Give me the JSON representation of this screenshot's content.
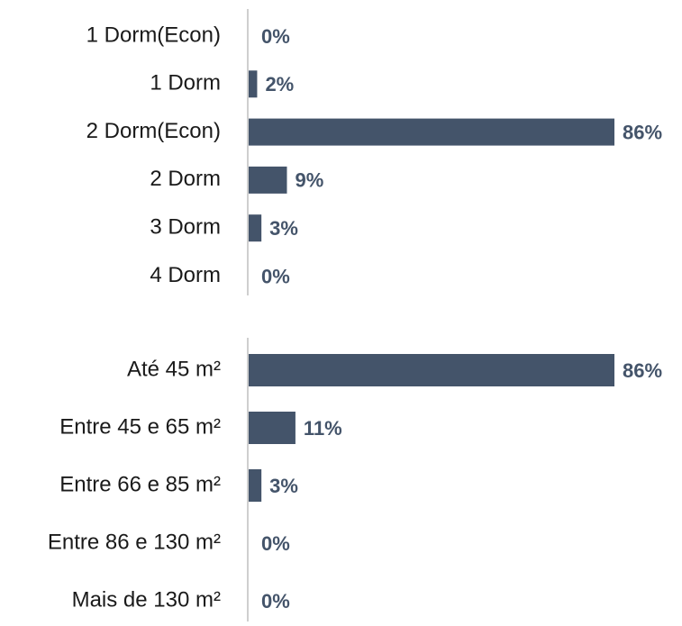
{
  "chart_data": [
    {
      "type": "bar",
      "orientation": "horizontal",
      "color": "#44546a",
      "categories": [
        "1 Dorm(Econ)",
        "1 Dorm",
        "2 Dorm(Econ)",
        "2 Dorm",
        "3 Dorm",
        "4 Dorm"
      ],
      "values": [
        0,
        2,
        86,
        9,
        3,
        0
      ],
      "value_labels": [
        "0%",
        "2%",
        "86%",
        "9%",
        "3%",
        "0%"
      ]
    },
    {
      "type": "bar",
      "orientation": "horizontal",
      "color": "#44546a",
      "categories": [
        "Até 45 m²",
        "Entre 45 e 65 m²",
        "Entre 66 e 85 m²",
        "Entre 86 e 130 m²",
        "Mais de 130 m²"
      ],
      "values": [
        86,
        11,
        3,
        0,
        0
      ],
      "value_labels": [
        "86%",
        "11%",
        "3%",
        "0%",
        "0%"
      ]
    }
  ]
}
